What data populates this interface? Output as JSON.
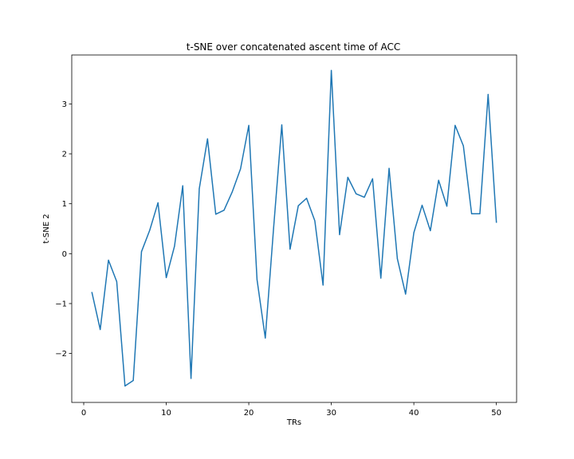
{
  "chart_data": {
    "type": "line",
    "title": "t-SNE over concatenated ascent time of ACC",
    "xlabel": "TRs",
    "ylabel": "t-SNE 2",
    "xlim": [
      -1.45,
      52.45
    ],
    "ylim": [
      -2.98,
      3.98
    ],
    "xticks": [
      0,
      10,
      20,
      30,
      40,
      50
    ],
    "yticks": [
      -2,
      -1,
      0,
      1,
      2,
      3
    ],
    "ytick_labels": [
      "−2",
      "−1",
      "0",
      "1",
      "2",
      "3"
    ],
    "grid": false,
    "color": "#1f77b4",
    "series": [
      {
        "x": [
          1,
          2,
          3,
          4,
          5,
          6,
          7,
          8,
          9,
          10,
          11,
          12,
          13,
          14,
          15,
          16,
          17,
          18,
          19,
          20,
          21,
          22,
          23,
          24,
          25,
          26,
          27,
          28,
          29,
          30,
          31,
          32,
          33,
          34,
          35,
          36,
          37,
          38,
          39,
          40,
          41,
          42,
          43,
          44,
          45,
          46,
          47,
          48,
          49,
          50
        ],
        "values": [
          -0.78,
          -1.52,
          -0.13,
          -0.56,
          -2.65,
          -2.54,
          0.04,
          0.47,
          1.02,
          -0.48,
          0.15,
          1.36,
          -2.5,
          1.3,
          2.3,
          0.79,
          0.87,
          1.24,
          1.7,
          2.57,
          -0.52,
          -1.69,
          0.5,
          2.58,
          0.09,
          0.96,
          1.11,
          0.66,
          -0.63,
          3.67,
          0.38,
          1.53,
          1.2,
          1.13,
          1.5,
          -0.49,
          1.71,
          -0.1,
          -0.81,
          0.42,
          0.97,
          0.46,
          1.47,
          0.95,
          2.57,
          2.16,
          0.8,
          0.8,
          3.19,
          0.63
        ]
      }
    ]
  }
}
